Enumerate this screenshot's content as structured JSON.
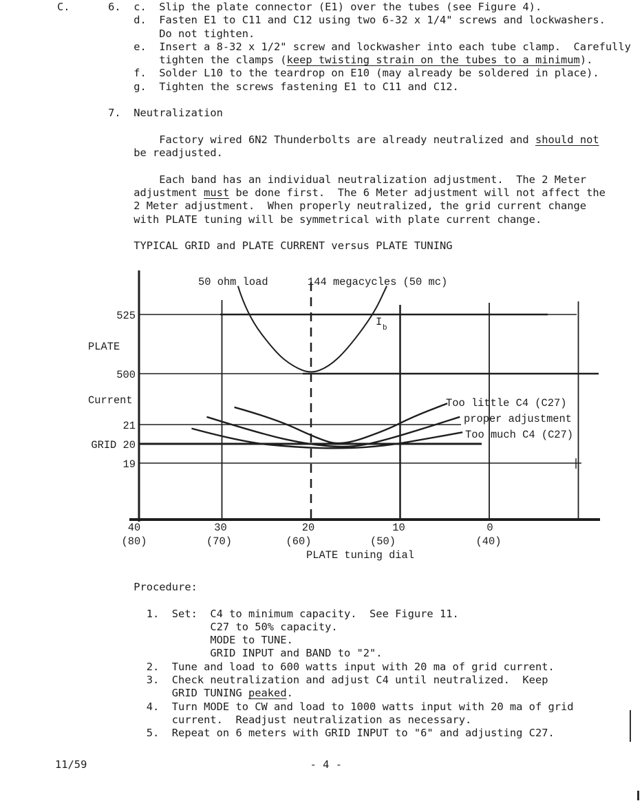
{
  "page": {
    "footer_lines": [
      [
        {
          "t": "11/59                                   - 4 -"
        }
      ]
    ]
  },
  "instructions": {
    "lines": [
      [
        {
          "t": "C.      6.  c.  Slip the plate connector (E1) over the tubes (see Figure 4)."
        }
      ],
      [
        {
          "t": "            d.  Fasten E1 to C11 and C12 using two 6-32 x 1/4\" screws and lockwashers."
        }
      ],
      [
        {
          "t": "                Do not tighten."
        }
      ],
      [
        {
          "t": "            e.  Insert a 8-32 x 1/2\" screw and lockwasher into each tube clamp.  Carefully"
        }
      ],
      [
        {
          "t": "                tighten the clamps ("
        },
        {
          "t": "keep twisting strain on the tubes to a minimum",
          "u": true
        },
        {
          "t": ")."
        }
      ],
      [
        {
          "t": "            f.  Solder L10 to the teardrop on E10 (may already be soldered in place)."
        }
      ],
      [
        {
          "t": "            g.  Tighten the screws fastening E1 to C11 and C12."
        }
      ],
      [],
      [
        {
          "t": "        7.  Neutralization"
        }
      ],
      [],
      [
        {
          "t": "                Factory wired 6N2 Thunderbolts are already neutralized and "
        },
        {
          "t": "should not",
          "u": true
        }
      ],
      [
        {
          "t": "            be readjusted."
        }
      ],
      [],
      [
        {
          "t": "                Each band has an individual neutralization adjustment.  The 2 Meter"
        }
      ],
      [
        {
          "t": "            adjustment "
        },
        {
          "t": "must",
          "u": true
        },
        {
          "t": " be done first.  The 6 Meter adjustment will not affect the"
        }
      ],
      [
        {
          "t": "            2 Meter adjustment.  When properly neutralized, the grid current change"
        }
      ],
      [
        {
          "t": "            with PLATE tuning will be symmetrical with plate current change."
        }
      ],
      [],
      [
        {
          "t": "            TYPICAL GRID and PLATE CURRENT versus PLATE TUNING"
        }
      ]
    ]
  },
  "procedure": {
    "lines": [
      [
        {
          "t": "            Procedure:"
        }
      ],
      [],
      [
        {
          "t": "              1.  Set:  C4 to minimum capacity.  See Figure 11."
        }
      ],
      [
        {
          "t": "                        C27 to 50% capacity."
        }
      ],
      [
        {
          "t": "                        MODE to TUNE."
        }
      ],
      [
        {
          "t": "                        GRID INPUT and BAND to \"2\"."
        }
      ],
      [
        {
          "t": "              2.  Tune and load to 600 watts input with 20 ma of grid current."
        }
      ],
      [
        {
          "t": "              3.  Check neutralization and adjust C4 until neutralized.  Keep"
        }
      ],
      [
        {
          "t": "                  GRID TUNING "
        },
        {
          "t": "peaked",
          "u": true
        },
        {
          "t": "."
        }
      ],
      [
        {
          "t": "              4.  Turn MODE to CW and load to 1000 watts input with 20 ma of grid"
        }
      ],
      [
        {
          "t": "                  current.  Readjust neutralization as necessary."
        }
      ],
      [
        {
          "t": "              5.  Repeat on 6 meters with GRID INPUT to \"6\" and adjusting C27."
        }
      ]
    ]
  },
  "chart_data": {
    "type": "line",
    "title": "TYPICAL GRID and PLATE CURRENT versus PLATE TUNING",
    "ink_color": "#1e1e1e",
    "x_axis": {
      "label": "PLATE tuning dial",
      "reversed": true,
      "ticks": [
        {
          "value": 40,
          "label": "40",
          "sublabel": "(80)"
        },
        {
          "value": 30,
          "label": "30",
          "sublabel": "(70)"
        },
        {
          "value": 20,
          "label": "20",
          "sublabel": "(60)"
        },
        {
          "value": 10,
          "label": "10",
          "sublabel": "(50)"
        },
        {
          "value": 0,
          "label": "0",
          "sublabel": "(40)"
        }
      ]
    },
    "y_axis": {
      "plate_title_lines": [
        "PLATE",
        "Current"
      ],
      "plate_ticks": [
        {
          "value": 525,
          "label": "525"
        },
        {
          "value": 500,
          "label": "500"
        }
      ],
      "grid_ticks": [
        {
          "value": 21,
          "label": "21"
        },
        {
          "value": 20,
          "label": "GRID 20"
        },
        {
          "value": 19,
          "label": "19"
        }
      ]
    },
    "annotations": [
      {
        "text": "50 ohm load",
        "role": "load-note"
      },
      {
        "text": "144 megacycles (50 mc)",
        "role": "frequency-note"
      },
      {
        "text": "Ib",
        "role": "plate-current-symbol"
      }
    ],
    "series": [
      {
        "name": "plate current (Ib)",
        "axis": "plate",
        "label": "",
        "points": [
          [
            28.2,
            537
          ],
          [
            27.2,
            525
          ],
          [
            24,
            509
          ],
          [
            22,
            503
          ],
          [
            20,
            500
          ],
          [
            18,
            503
          ],
          [
            16,
            510
          ],
          [
            13,
            525
          ],
          [
            11.5,
            537
          ]
        ]
      },
      {
        "name": "grid current - too little C4 (C27)",
        "axis": "grid",
        "label": "Too little C4 (C27)",
        "points": [
          [
            28.6,
            21.9
          ],
          [
            24,
            21.3
          ],
          [
            19.4,
            20.3
          ],
          [
            16.6,
            19.9
          ],
          [
            11.6,
            20.7
          ],
          [
            8.6,
            21.4
          ],
          [
            4.7,
            22.1
          ]
        ]
      },
      {
        "name": "grid current - proper adjustment",
        "axis": "grid",
        "label": "proper adjustment",
        "points": [
          [
            31.7,
            21.4
          ],
          [
            25.5,
            20.5
          ],
          [
            20,
            19.95
          ],
          [
            15.5,
            19.8
          ],
          [
            11.6,
            20.2
          ],
          [
            6,
            21.0
          ],
          [
            3.3,
            21.4
          ]
        ]
      },
      {
        "name": "grid current - too much C4 (C27)",
        "axis": "grid",
        "label": "Too much C4 (C27)",
        "points": [
          [
            33.4,
            20.8
          ],
          [
            27.8,
            20.1
          ],
          [
            21.7,
            19.82
          ],
          [
            16.3,
            19.75
          ],
          [
            11.6,
            19.9
          ],
          [
            7.8,
            20.2
          ],
          [
            3.0,
            20.6
          ]
        ]
      }
    ]
  }
}
